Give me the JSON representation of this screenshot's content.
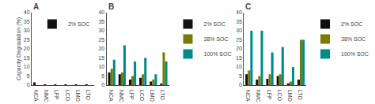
{
  "chart_data": [
    {
      "type": "bar",
      "title": "A",
      "categories": [
        "NCA",
        "NMC",
        "LFP",
        "LCO",
        "LMO",
        "LTO"
      ],
      "series": [
        {
          "name": "2% SOC",
          "color": "#111111",
          "values": [
            1.5,
            0.2,
            0.1,
            0.1,
            0.1,
            0.1
          ]
        },
        {
          "color": "#7a7a00",
          "values": [
            0,
            0,
            0,
            0,
            0,
            0
          ]
        },
        {
          "color": "#008b8b",
          "values": [
            0,
            0,
            0,
            0,
            0,
            0
          ]
        }
      ],
      "ylabel": "Capacity Degradation (%)",
      "ylim": [
        0,
        40
      ],
      "yticks": [
        0,
        5,
        10,
        15,
        20,
        25,
        30,
        35,
        40
      ],
      "grid": false,
      "legend": "upper right"
    },
    {
      "type": "bar",
      "title": "B",
      "categories": [
        "NCA",
        "NMC",
        "LFP",
        "LCO",
        "LMO",
        "LTO"
      ],
      "series": [
        {
          "name": "2% SOC",
          "color": "#111111",
          "values": [
            7,
            6,
            3,
            4,
            2,
            0.5
          ]
        },
        {
          "name": "38% SOC",
          "color": "#7a7a00",
          "values": [
            9,
            7,
            5,
            6,
            3,
            18
          ]
        },
        {
          "name": "100% SOC",
          "color": "#008b8b",
          "values": [
            14,
            22,
            13,
            15,
            6,
            13
          ]
        }
      ],
      "ylim": [
        0,
        40
      ],
      "yticks": [
        0,
        5,
        10,
        15,
        20,
        25,
        30,
        35,
        40
      ],
      "grid": false,
      "legend": "upper right"
    },
    {
      "type": "bar",
      "title": "C",
      "categories": [
        "NCA",
        "NMC",
        "LFP",
        "LCO",
        "LMO",
        "LTO"
      ],
      "series": [
        {
          "name": "2% SOC",
          "color": "#111111",
          "values": [
            6,
            3,
            3.5,
            5,
            1,
            3
          ]
        },
        {
          "name": "38% SOC",
          "color": "#7a7a00",
          "values": [
            8,
            5,
            6,
            6,
            2,
            25
          ]
        },
        {
          "name": "100% SOC",
          "color": "#008b8b",
          "values": [
            30,
            30,
            18,
            21,
            10,
            25
          ]
        }
      ],
      "ylim": [
        0,
        40
      ],
      "yticks": [
        0,
        5,
        10,
        15,
        20,
        25,
        30,
        35,
        40
      ],
      "grid": false,
      "legend": "upper right"
    }
  ]
}
